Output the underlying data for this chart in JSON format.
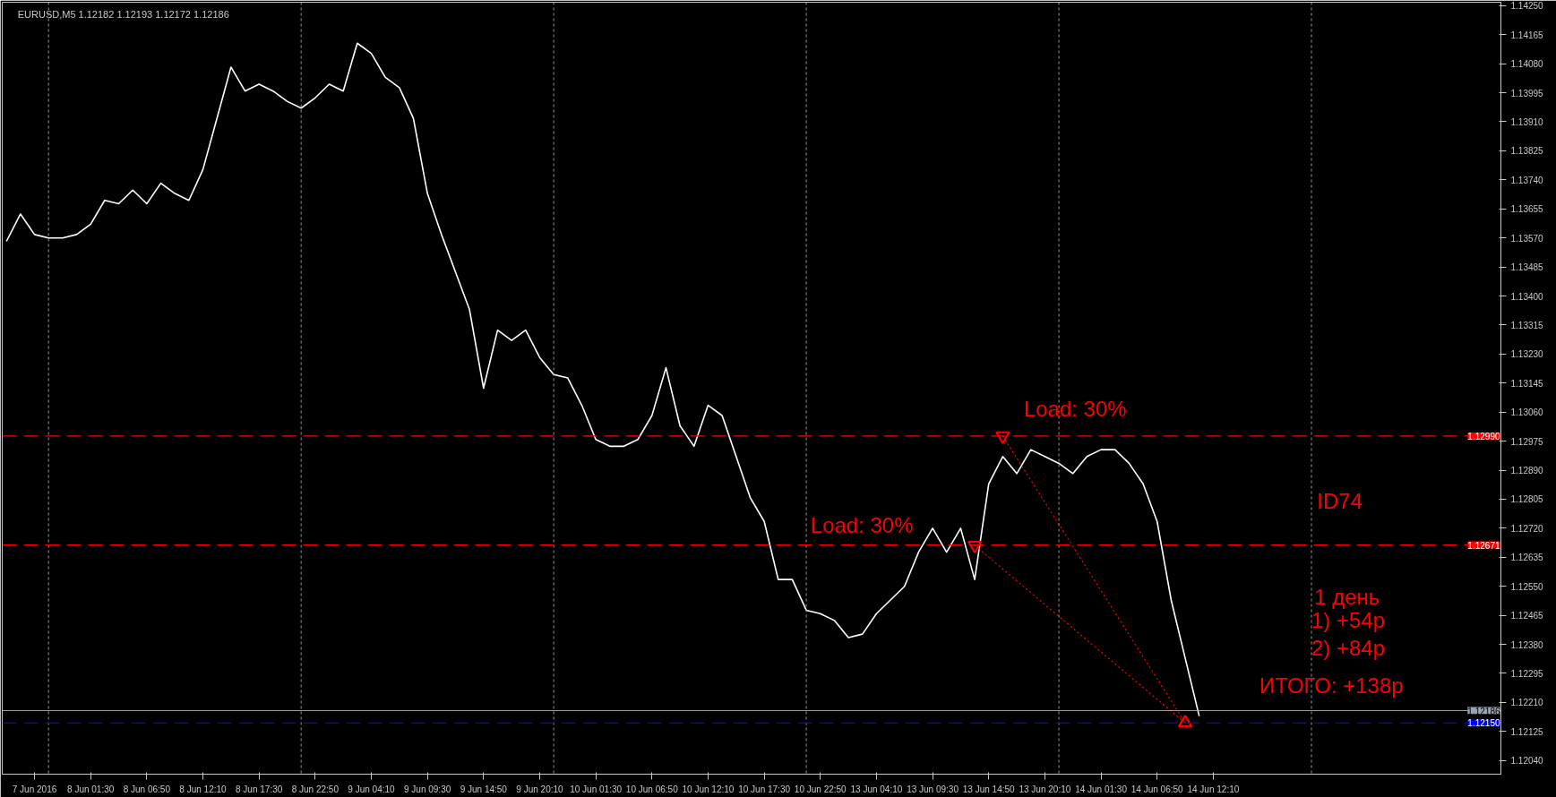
{
  "chart_data": {
    "type": "line",
    "categories": [
      null,
      null,
      "7 Jun 2016",
      null,
      null,
      null,
      "8 Jun 01:30",
      null,
      null,
      null,
      "8 Jun 06:50",
      null,
      null,
      null,
      "8 Jun 12:10",
      null,
      null,
      null,
      "8 Jun 17:30",
      null,
      null,
      null,
      "8 Jun 22:50",
      null,
      null,
      null,
      "9 Jun 04:10",
      null,
      null,
      null,
      "9 Jun 09:30",
      null,
      null,
      null,
      "9 Jun 14:50",
      null,
      null,
      null,
      "9 Jun 20:10",
      null,
      null,
      null,
      "10 Jun 01:30",
      null,
      null,
      null,
      "10 Jun 06:50",
      null,
      null,
      null,
      "10 Jun 12:10",
      null,
      null,
      null,
      "10 Jun 17:30",
      null,
      null,
      null,
      "10 Jun 22:50",
      null,
      null,
      null,
      "13 Jun 04:10",
      null,
      null,
      null,
      "13 Jun 09:30",
      null,
      null,
      null,
      "13 Jun 14:50",
      null,
      null,
      null,
      "13 Jun 20:10",
      null,
      null,
      null,
      "14 Jun 01:30",
      null,
      null,
      null,
      "14 Jun 06:50",
      null,
      null,
      null,
      "14 Jun 12:10",
      null,
      null,
      null,
      null,
      null,
      null,
      null,
      null,
      null,
      null,
      null,
      null,
      null,
      null,
      null,
      null,
      null,
      null,
      null
    ],
    "series": [
      {
        "color": "#ffffff",
        "line_style": "solid",
        "values": [
          1.1356,
          1.1364,
          1.1358,
          1.1357,
          1.1357,
          1.1358,
          1.1361,
          1.1368,
          1.1367,
          1.1371,
          1.1367,
          1.1373,
          1.137,
          1.1368,
          1.1377,
          1.1392,
          1.1407,
          1.14,
          1.1402,
          1.14,
          1.1397,
          1.1395,
          1.1398,
          1.1402,
          1.14,
          1.1414,
          1.1411,
          1.1404,
          1.1401,
          1.1392,
          1.137,
          1.1358,
          1.1347,
          1.1336,
          1.1313,
          1.133,
          1.1327,
          1.133,
          1.1322,
          1.1317,
          1.1316,
          1.1308,
          1.1298,
          1.1296,
          1.1296,
          1.1298,
          1.1305,
          1.1319,
          1.1302,
          1.1296,
          1.1308,
          1.1305,
          1.1293,
          1.1281,
          1.1274,
          1.1257,
          1.1257,
          1.1248,
          1.1247,
          1.1245,
          1.124,
          1.1241,
          1.1247,
          1.1251,
          1.1255,
          1.1265,
          1.1272,
          1.1265,
          1.1272,
          1.1257,
          1.1285,
          1.1293,
          1.1288,
          1.1295,
          1.1293,
          1.1291,
          1.1288,
          1.1293,
          1.1295,
          1.1295,
          1.1291,
          1.1285,
          1.1274,
          1.1251,
          1.1234,
          1.1217,
          null,
          null,
          null,
          null,
          null,
          null,
          null,
          null,
          null,
          null,
          null,
          null,
          null,
          null,
          null,
          null,
          null,
          null,
          null,
          null
        ]
      },
      {
        "color": "#ff0000",
        "line_style": "dotted",
        "marker": "triangle",
        "values": [
          null,
          null,
          null,
          null,
          null,
          null,
          null,
          null,
          null,
          null,
          null,
          null,
          null,
          null,
          null,
          null,
          null,
          null,
          null,
          null,
          null,
          null,
          null,
          null,
          null,
          null,
          null,
          null,
          null,
          null,
          null,
          null,
          null,
          null,
          null,
          null,
          null,
          null,
          null,
          null,
          null,
          null,
          null,
          null,
          null,
          null,
          null,
          null,
          null,
          null,
          null,
          null,
          null,
          null,
          null,
          null,
          null,
          null,
          null,
          null,
          null,
          null,
          null,
          null,
          null,
          null,
          null,
          null,
          null,
          1.1267,
          null,
          null,
          null,
          null,
          null,
          null,
          null,
          null,
          null,
          null,
          null,
          null,
          null,
          null,
          1.1215,
          null,
          null,
          null,
          null,
          null,
          null,
          null,
          null,
          null,
          null,
          null,
          null,
          null,
          null,
          null,
          null,
          null,
          null,
          null,
          null,
          null
        ]
      },
      {
        "color": "#ff0000",
        "line_style": "dotted",
        "marker": "triangle",
        "values": [
          null,
          null,
          null,
          null,
          null,
          null,
          null,
          null,
          null,
          null,
          null,
          null,
          null,
          null,
          null,
          null,
          null,
          null,
          null,
          null,
          null,
          null,
          null,
          null,
          null,
          null,
          null,
          null,
          null,
          null,
          null,
          null,
          null,
          null,
          null,
          null,
          null,
          null,
          null,
          null,
          null,
          null,
          null,
          null,
          null,
          null,
          null,
          null,
          null,
          null,
          null,
          null,
          null,
          null,
          null,
          null,
          null,
          null,
          null,
          null,
          null,
          null,
          null,
          null,
          null,
          null,
          null,
          null,
          null,
          null,
          null,
          1.1299,
          null,
          null,
          null,
          null,
          null,
          null,
          null,
          null,
          null,
          null,
          null,
          null,
          1.1215,
          null,
          null,
          null,
          null,
          null,
          null,
          null,
          null,
          null,
          null,
          null,
          null,
          null,
          null,
          null,
          null,
          null,
          null,
          null,
          null,
          null
        ]
      }
    ],
    "ylim": [
      1.12,
      1.1426
    ],
    "yticks": [
      {
        "value": 1.1204,
        "label": "1.12040"
      },
      {
        "value": 1.12125,
        "label": "1.12125"
      },
      {
        "value": 1.1221,
        "label": "1.12210"
      },
      {
        "value": 1.12295,
        "label": "1.12295"
      },
      {
        "value": 1.1238,
        "label": "1.12380"
      },
      {
        "value": 1.12465,
        "label": "1.12465"
      },
      {
        "value": 1.1255,
        "label": "1.12550"
      },
      {
        "value": 1.12635,
        "label": "1.12635"
      },
      {
        "value": 1.1272,
        "label": "1.12720"
      },
      {
        "value": 1.12805,
        "label": "1.12805"
      },
      {
        "value": 1.1289,
        "label": "1.12890"
      },
      {
        "value": 1.12975,
        "label": "1.12975"
      },
      {
        "value": 1.1306,
        "label": "1.13060"
      },
      {
        "value": 1.13145,
        "label": "1.13145"
      },
      {
        "value": 1.1323,
        "label": "1.13230"
      },
      {
        "value": 1.13315,
        "label": "1.13315"
      },
      {
        "value": 1.134,
        "label": "1.13400"
      },
      {
        "value": 1.13485,
        "label": "1.13485"
      },
      {
        "value": 1.1357,
        "label": "1.13570"
      },
      {
        "value": 1.13655,
        "label": "1.13655"
      },
      {
        "value": 1.1374,
        "label": "1.13740"
      },
      {
        "value": 1.13825,
        "label": "1.13825"
      },
      {
        "value": 1.1391,
        "label": "1.13910"
      },
      {
        "value": 1.13995,
        "label": "1.13995"
      },
      {
        "value": 1.1408,
        "label": "1.14080"
      },
      {
        "value": 1.14165,
        "label": "1.14165"
      },
      {
        "value": 1.1425,
        "label": "1.14250"
      }
    ],
    "grid": "x",
    "ref_lines": [
      {
        "axis": "y",
        "value": 1.1299,
        "label": "1.12990",
        "color": "#ff0000",
        "line_style": "dashed"
      },
      {
        "axis": "y",
        "value": 1.12671,
        "label": "1.12671",
        "color": "#ff0000",
        "line_style": "dashed"
      },
      {
        "axis": "y",
        "value": 1.12186,
        "label": "1.12186",
        "color": "#9aa3b0",
        "line_style": "solid"
      },
      {
        "axis": "y",
        "value": 1.1215,
        "label": "1.12150",
        "color": "#0000ff",
        "line_style": "dashed"
      }
    ],
    "annotations": [
      "EURUSD,M5  1.12182 1.12193 1.12172 1.12186",
      "Load: 30%",
      "Load: 30%",
      "ID74",
      "1 день",
      "1) +54р",
      "2) +84р",
      "ИТОГО: +138р"
    ]
  }
}
